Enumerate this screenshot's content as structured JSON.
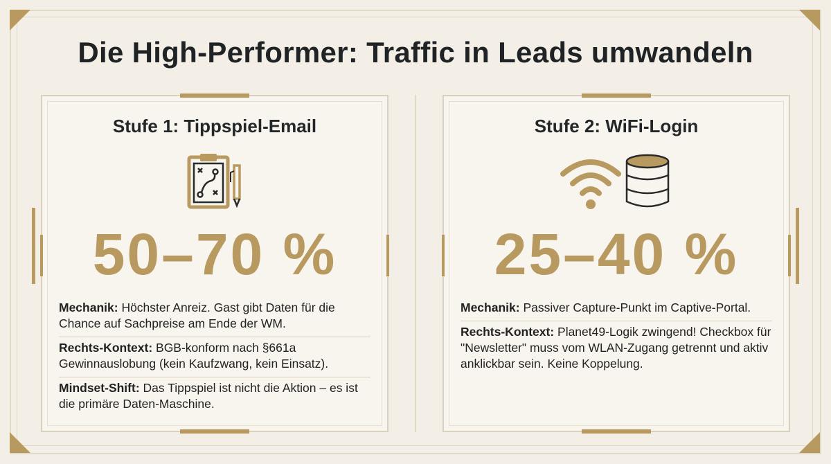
{
  "title": "Die High-Performer: Traffic in Leads umwandeln",
  "colors": {
    "accent": "#b8995f",
    "background": "#f3efe6",
    "text": "#1f2326"
  },
  "cards": [
    {
      "stage_title": "Stufe 1: Tippspiel-Email",
      "icon": "clipboard-tactics-pencil-icon",
      "value": "50–70 %",
      "items": [
        {
          "label": "Mechanik:",
          "text": " Höchster Anreiz. Gast gibt Daten für die Chance auf Sachpreise am Ende der WM."
        },
        {
          "label": "Rechts-Kontext:",
          "text": " BGB-konform nach §661a Gewinnauslobung (kein Kaufzwang, kein Einsatz)."
        },
        {
          "label": "Mindset-Shift:",
          "text": " Das Tippspiel ist nicht die Aktion – es ist die primäre Daten-Maschine."
        }
      ]
    },
    {
      "stage_title": "Stufe 2: WiFi-Login",
      "icon": "wifi-database-icon",
      "value": "25–40 %",
      "items": [
        {
          "label": "Mechanik:",
          "text": " Passiver Capture-Punkt im Captive-Portal."
        },
        {
          "label": "Rechts-Kontext:",
          "text": " Planet49-Logik zwingend! Checkbox für \"Newsletter\" muss vom WLAN-Zugang getrennt und aktiv anklickbar sein. Keine Koppelung."
        }
      ]
    }
  ]
}
